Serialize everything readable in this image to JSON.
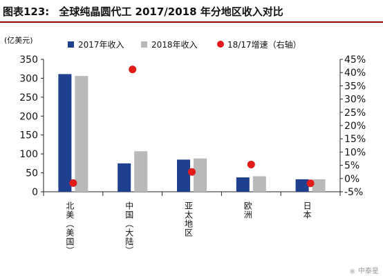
{
  "figure": {
    "number": "图表123:",
    "title": "全球纯晶圆代工 2017/2018 年分地区收入对比"
  },
  "watermark": {
    "icon": "wechat-icon",
    "text": "中泰星"
  },
  "chart_data": {
    "type": "bar",
    "unit_label": "(亿美元)",
    "categories": [
      "北美（美国）",
      "中国（大陆）",
      "亚太地区",
      "欧洲",
      "日本"
    ],
    "series": [
      {
        "name": "2017年收入",
        "type": "bar",
        "axis": "left",
        "color": "#1f3f8f",
        "values": [
          311,
          75,
          85,
          38,
          33
        ]
      },
      {
        "name": "2018年收入",
        "type": "bar",
        "axis": "left",
        "color": "#b9b9b9",
        "values": [
          306,
          107,
          88,
          41,
          33
        ]
      },
      {
        "name": "18/17增速（右轴）",
        "type": "scatter",
        "axis": "right",
        "color": "#e11a1a",
        "values": [
          -1.7,
          41.2,
          2.5,
          5.3,
          -1.8
        ]
      }
    ],
    "y_left": {
      "min": 0,
      "max": 350,
      "ticks": [
        0,
        50,
        100,
        150,
        200,
        250,
        300,
        350
      ]
    },
    "y_right": {
      "min": -5,
      "max": 45,
      "ticks": [
        "-5%",
        "0%",
        "5%",
        "10%",
        "15%",
        "20%",
        "25%",
        "30%",
        "35%",
        "40%",
        "45%"
      ]
    },
    "grid": false,
    "legend_position": "top"
  }
}
